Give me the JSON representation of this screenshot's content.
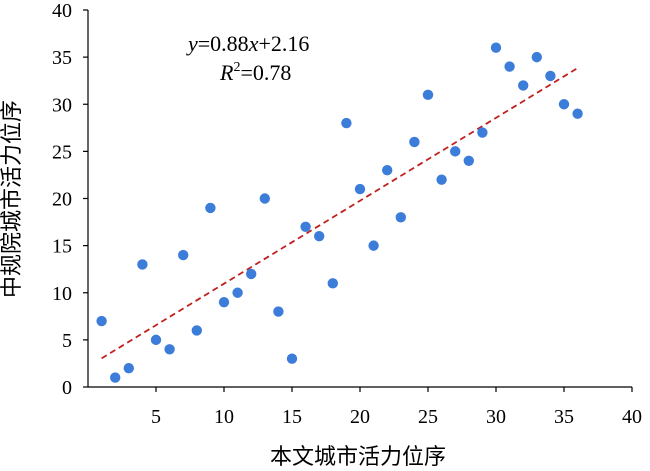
{
  "chart_data": {
    "type": "scatter",
    "xlabel": "本文城市活力位序",
    "ylabel": "中规院城市活力位序",
    "xlim": [
      0,
      40
    ],
    "ylim": [
      0,
      40
    ],
    "xticks": [
      5,
      10,
      15,
      20,
      25,
      30,
      35,
      40
    ],
    "yticks": [
      0,
      5,
      10,
      15,
      20,
      25,
      30,
      35,
      40
    ],
    "grid": false,
    "legend": "none",
    "points": [
      {
        "x": 1,
        "y": 7
      },
      {
        "x": 2,
        "y": 1
      },
      {
        "x": 3,
        "y": 2
      },
      {
        "x": 4,
        "y": 13
      },
      {
        "x": 5,
        "y": 5
      },
      {
        "x": 6,
        "y": 4
      },
      {
        "x": 7,
        "y": 14
      },
      {
        "x": 8,
        "y": 6
      },
      {
        "x": 9,
        "y": 19
      },
      {
        "x": 10,
        "y": 9
      },
      {
        "x": 11,
        "y": 10
      },
      {
        "x": 12,
        "y": 12
      },
      {
        "x": 13,
        "y": 20
      },
      {
        "x": 14,
        "y": 8
      },
      {
        "x": 15,
        "y": 3
      },
      {
        "x": 16,
        "y": 17
      },
      {
        "x": 17,
        "y": 16
      },
      {
        "x": 18,
        "y": 11
      },
      {
        "x": 19,
        "y": 28
      },
      {
        "x": 20,
        "y": 21
      },
      {
        "x": 21,
        "y": 15
      },
      {
        "x": 22,
        "y": 23
      },
      {
        "x": 23,
        "y": 18
      },
      {
        "x": 24,
        "y": 26
      },
      {
        "x": 25,
        "y": 31
      },
      {
        "x": 26,
        "y": 22
      },
      {
        "x": 27,
        "y": 25
      },
      {
        "x": 28,
        "y": 24
      },
      {
        "x": 29,
        "y": 27
      },
      {
        "x": 30,
        "y": 36
      },
      {
        "x": 31,
        "y": 34
      },
      {
        "x": 32,
        "y": 32
      },
      {
        "x": 33,
        "y": 35
      },
      {
        "x": 34,
        "y": 33
      },
      {
        "x": 35,
        "y": 30
      },
      {
        "x": 36,
        "y": 29
      }
    ],
    "trendline": {
      "slope": 0.88,
      "intercept": 2.16,
      "x_range": [
        1,
        36
      ],
      "style": "dashed",
      "color": "#c0211f"
    },
    "annotation": {
      "equation": {
        "y": "y",
        "eq_mid": "=0.88",
        "x": "x",
        "eq_end": "+2.16"
      },
      "r2": {
        "r": "R",
        "sup": "2",
        "rest": "=0.78"
      }
    },
    "colors": {
      "points": "#3b7dd8",
      "trendline": "#c0211f",
      "axes": "#000000"
    }
  }
}
